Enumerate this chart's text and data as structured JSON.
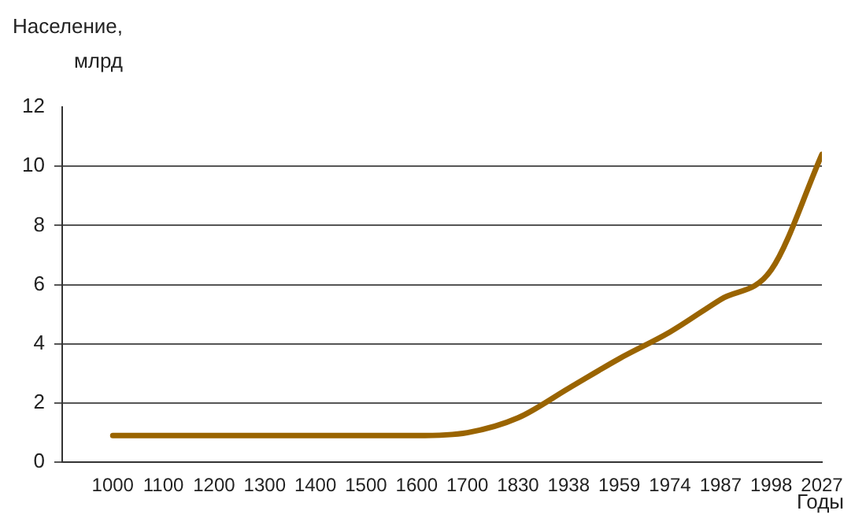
{
  "chart_data": {
    "type": "line",
    "ylabel": "Население,\nмлрд",
    "xlabel": "Годы",
    "categories": [
      "1000",
      "1100",
      "1200",
      "1300",
      "1400",
      "1500",
      "1600",
      "1700",
      "1830",
      "1938",
      "1959",
      "1974",
      "1987",
      "1998",
      "2027"
    ],
    "series": [
      {
        "color": "#9a6400",
        "values": [
          0.9,
          0.9,
          0.9,
          0.9,
          0.9,
          0.9,
          0.9,
          1.0,
          1.5,
          2.5,
          3.5,
          4.4,
          5.5,
          6.5,
          10.4
        ]
      }
    ],
    "ylim": [
      0,
      12
    ],
    "yticks": [
      0,
      2,
      4,
      6,
      8,
      10,
      12
    ],
    "grid": "y",
    "legend": false,
    "marker": "none",
    "line_style": "solid"
  }
}
